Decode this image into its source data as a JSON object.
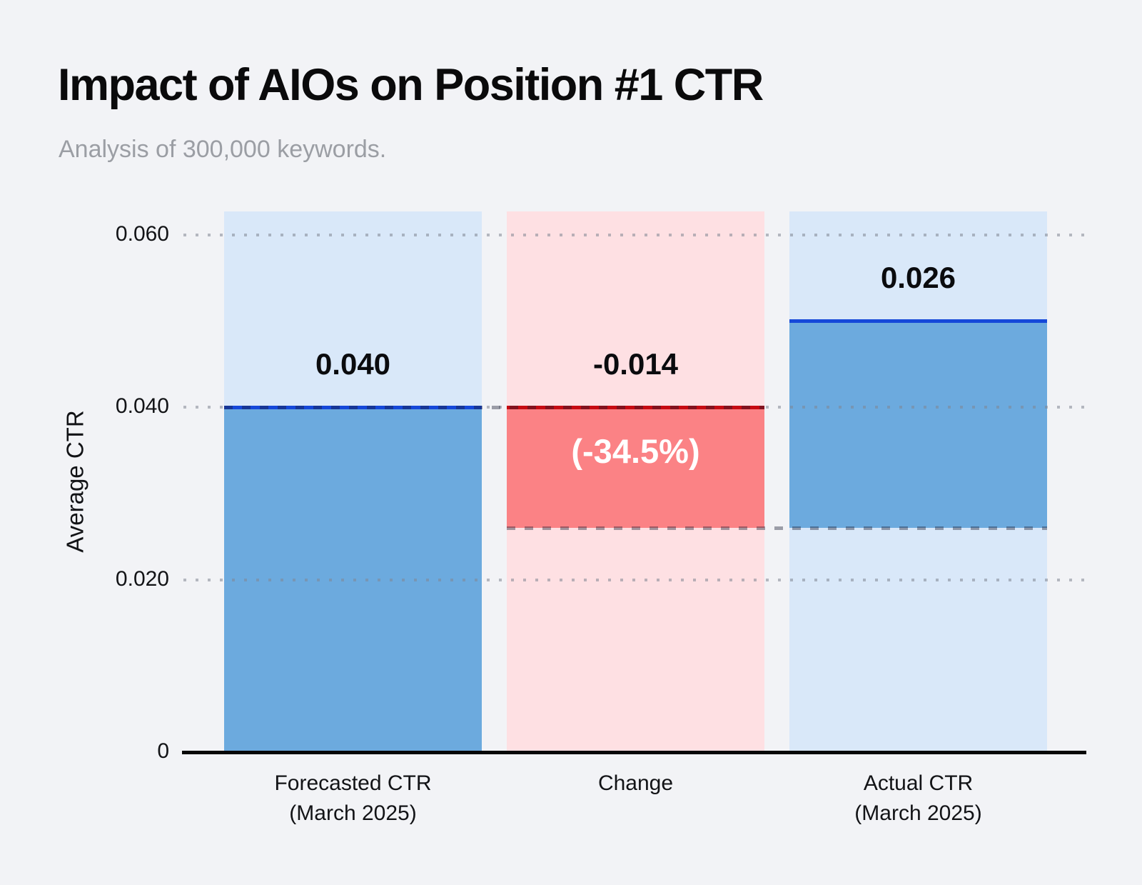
{
  "header": {
    "title": "Impact of AIOs on Position #1 CTR",
    "subtitle": "Analysis of 300,000 keywords."
  },
  "chart_data": {
    "type": "bar",
    "subtype": "waterfall",
    "title": "Impact of AIOs on Position #1 CTR",
    "subtitle": "Analysis of 300,000 keywords.",
    "xlabel": "",
    "ylabel": "Average CTR",
    "ylim": [
      0,
      0.0627
    ],
    "grid": "horizontal-dotted",
    "legend": "none",
    "yticks": [
      {
        "value": 0,
        "label": "0"
      },
      {
        "value": 0.02,
        "label": "0.020"
      },
      {
        "value": 0.04,
        "label": "0.040"
      },
      {
        "value": 0.06,
        "label": "0.060"
      }
    ],
    "gridline_values": [
      0.02,
      0.04,
      0.06
    ],
    "categories": [
      "Forecasted CTR (March 2025)",
      "Change",
      "Actual CTR (March 2025)"
    ],
    "series": [
      {
        "category_lines": [
          "Forecasted CTR",
          "(March 2025)"
        ],
        "value": 0.04,
        "value_label": "0.040",
        "color_role": "blue",
        "highlight_band": [
          0,
          0.04
        ]
      },
      {
        "category_lines": [
          "Change"
        ],
        "value": -0.014,
        "value_label": "-0.014",
        "inner_label": "(-34.5%)",
        "color_role": "red",
        "highlight_band": [
          0.026,
          0.04
        ]
      },
      {
        "category_lines": [
          "Actual CTR",
          "(March 2025)"
        ],
        "value": 0.026,
        "value_label": "0.026",
        "color_role": "blue",
        "highlight_band": [
          0.026,
          0.05
        ]
      }
    ],
    "connectors": [
      {
        "value": 0.04,
        "from_bar": 0,
        "to_bar": 1,
        "style": "dashed-gray"
      },
      {
        "value": 0.026,
        "from_bar": 1,
        "to_bar": 2,
        "style": "dashed-gray"
      }
    ],
    "colors": {
      "page_bg": "#f2f3f6",
      "blue_fill": "#6caade",
      "blue_bg": "#d9e8f9",
      "blue_line": "#1548d9",
      "red_fill": "#fb8285",
      "red_bg": "#fee0e3",
      "red_line": "#c60b12",
      "axis": "#070707",
      "title_text": "#0a0a0b",
      "subtitle_text": "#9b9ea4",
      "tick_text": "#121316",
      "value_text": "#0a0b0e",
      "inner_text": "#ffffff"
    }
  }
}
